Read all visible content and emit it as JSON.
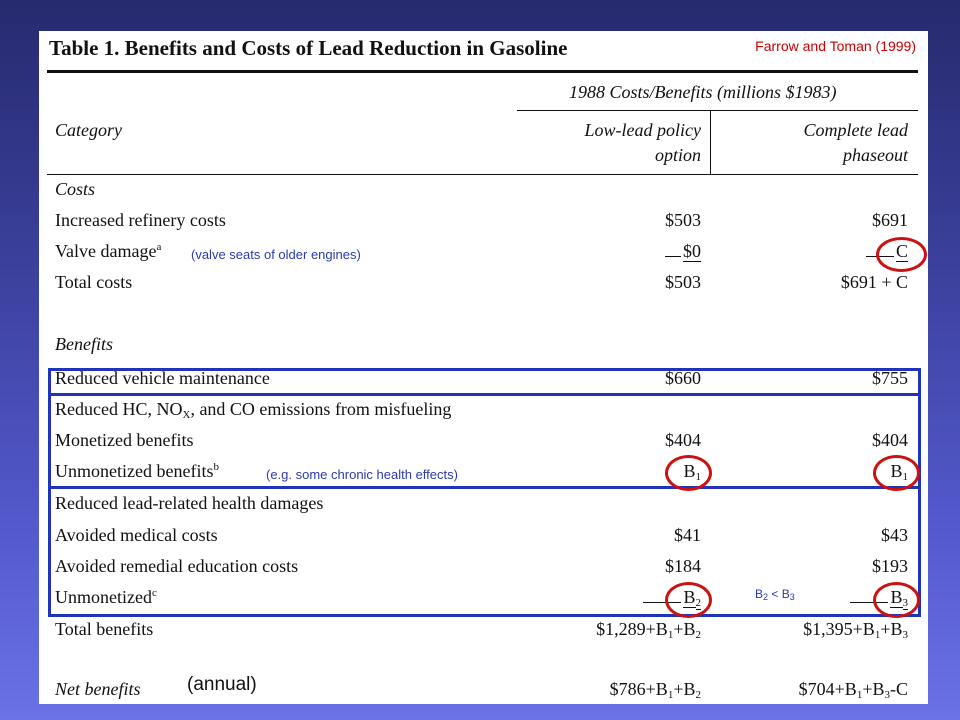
{
  "table": {
    "title": "Table 1.  Benefits and Costs of Lead Reduction in Gasoline",
    "citation": "Farrow and Toman (1999)",
    "super_header": "1988 Costs/Benefits (millions $1983)",
    "category_header": "Category",
    "col1_header_line1": "Low-lead policy",
    "col1_header_line2": "option",
    "col2_header_line1": "Complete lead",
    "col2_header_line2": "phaseout"
  },
  "costs": {
    "section": "Costs",
    "refinery_label": "Increased refinery costs",
    "refinery_col1": "$503",
    "refinery_col2": "$691",
    "valve_label": "Valve damage",
    "valve_sup": "a",
    "valve_col1": "$0",
    "valve_col2": "C",
    "total_label": "Total costs",
    "total_col1": "$503",
    "total_col2": "$691 + C"
  },
  "benefits": {
    "section": "Benefits",
    "maint_label": "Reduced vehicle maintenance",
    "maint_col1": "$660",
    "maint_col2": "$755",
    "hc_label_a": "Reduced HC, NO",
    "hc_label_sub": "X",
    "hc_label_b": ", and CO emissions from misfueling",
    "monetized_label": "Monetized benefits",
    "monetized_col1": "$404",
    "monetized_col2": "$404",
    "unmonetized_label": "Unmonetized benefits",
    "unmonetized_sup": "b",
    "b1_letter": "B",
    "b1_sub": "1",
    "lead_label": "Reduced lead-related health damages",
    "medical_label": "Avoided medical costs",
    "medical_col1": "$41",
    "medical_col2": "$43",
    "remedial_label": "Avoided remedial education costs",
    "remedial_col1": "$184",
    "remedial_col2": "$193",
    "unmon_label": "Unmonetized",
    "unmon_sup": "c",
    "b2_sub": "2",
    "b3_sub": "3",
    "total_label": "Total benefits",
    "total_col1_a": "$1,289+B",
    "total_col1_b": "+B",
    "total_col2_a": "$1,395+B",
    "total_col2_b": "+B"
  },
  "net": {
    "label": "Net benefits",
    "col1_a": "$786+B",
    "col1_b": "+B",
    "col2_a": "$704+B",
    "col2_b": "+B",
    "col2_c": "-C"
  },
  "annotations": {
    "valve_note": "(valve seats of older engines)",
    "health_note": "(e.g. some chronic health effects)",
    "compare_b": "B",
    "compare_sub2": "2",
    "compare_op": " < B",
    "compare_sub3": "3",
    "annual": "(annual)"
  },
  "colors": {
    "background": "#3a3f9a",
    "box": "#2233bb",
    "ring": "#cc1111",
    "note": "#2a3aaa",
    "citation": "#cc0000"
  }
}
